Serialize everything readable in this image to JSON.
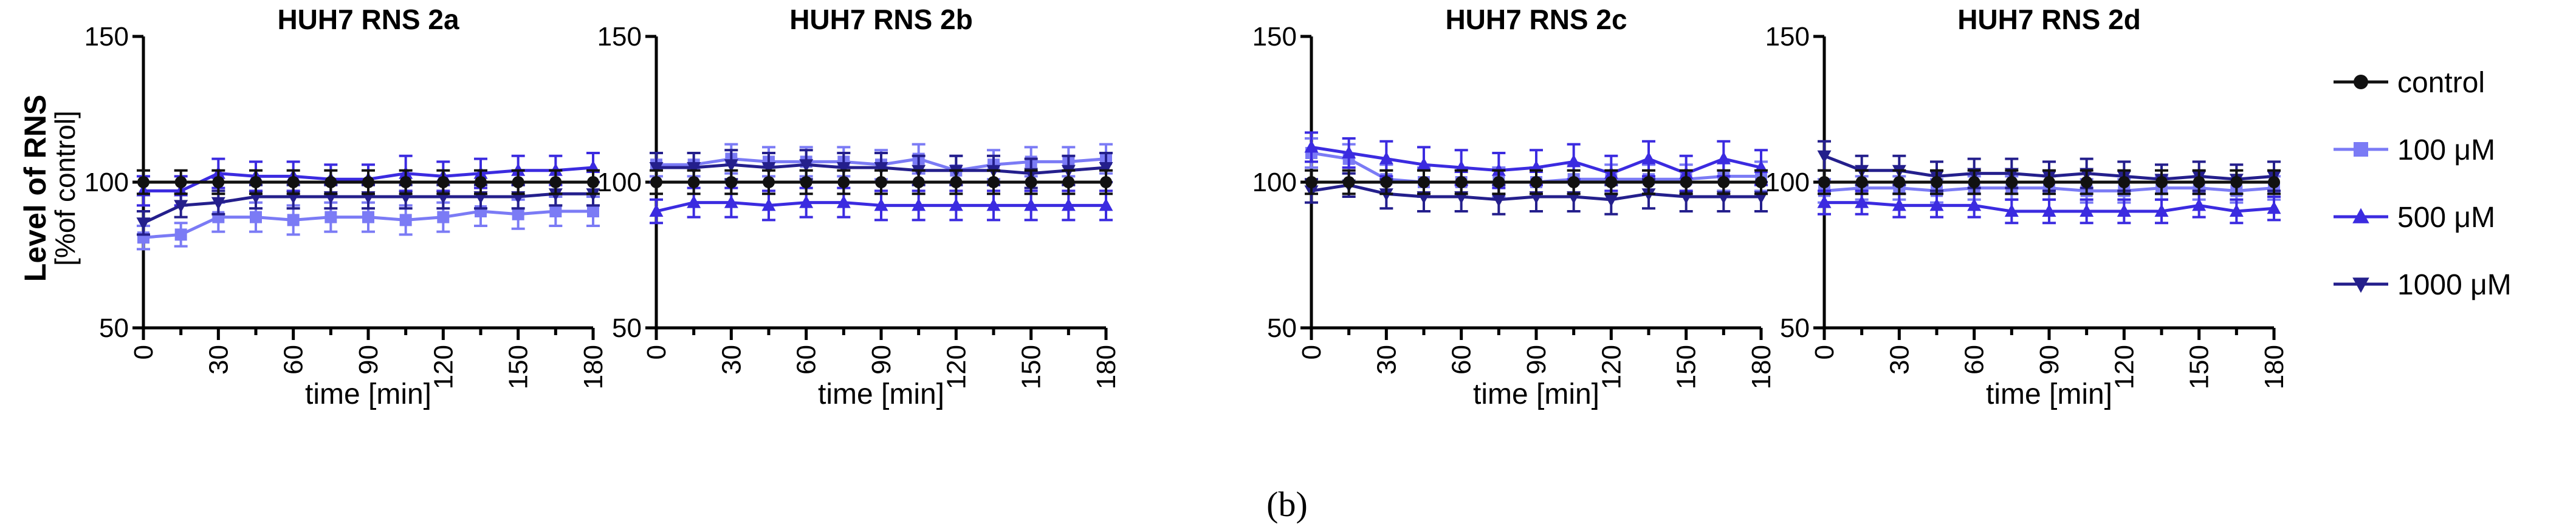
{
  "figure": {
    "ylabel_line1": "Level of RNS",
    "ylabel_line2": "[%of control]",
    "panel_label": "(b)"
  },
  "legend": [
    {
      "name": "control",
      "color": "#111111",
      "marker": "circle"
    },
    {
      "name": "100 μM",
      "color": "#7B7BF5",
      "marker": "square"
    },
    {
      "name": "500 μM",
      "color": "#3B2BE0",
      "marker": "triangle-up"
    },
    {
      "name": "1000 μM",
      "color": "#241F8C",
      "marker": "triangle-down"
    }
  ],
  "chart_data": [
    {
      "type": "line",
      "title": "HUH7 RNS 2a",
      "xlabel": "time [min]",
      "ylabel": "Level of RNS [%of control]",
      "x": [
        0,
        15,
        30,
        45,
        60,
        75,
        90,
        105,
        120,
        135,
        150,
        165,
        180
      ],
      "xticks": [
        0,
        30,
        60,
        90,
        120,
        150,
        180
      ],
      "yticks": [
        50,
        100,
        150
      ],
      "ylim": [
        50,
        150
      ],
      "xlim": [
        0,
        180
      ],
      "series": [
        {
          "name": "control",
          "values": [
            100,
            100,
            100,
            100,
            100,
            100,
            100,
            100,
            100,
            100,
            100,
            100,
            100
          ],
          "error": [
            4,
            4,
            4,
            4,
            4,
            4,
            4,
            4,
            4,
            4,
            4,
            4,
            4
          ]
        },
        {
          "name": "100 μM",
          "values": [
            81,
            82,
            88,
            88,
            87,
            88,
            88,
            87,
            88,
            90,
            89,
            90,
            90
          ],
          "error": [
            4,
            4,
            5,
            5,
            5,
            5,
            5,
            5,
            5,
            5,
            5,
            5,
            5
          ]
        },
        {
          "name": "500 μM",
          "values": [
            97,
            97,
            103,
            102,
            102,
            101,
            101,
            103,
            102,
            103,
            104,
            104,
            105
          ],
          "error": [
            5,
            5,
            5,
            5,
            5,
            5,
            5,
            6,
            5,
            5,
            5,
            5,
            5
          ]
        },
        {
          "name": "1000 μM",
          "values": [
            86,
            92,
            93,
            95,
            95,
            95,
            95,
            95,
            95,
            95,
            95,
            96,
            96
          ],
          "error": [
            4,
            4,
            4,
            4,
            4,
            4,
            4,
            4,
            4,
            4,
            4,
            4,
            4
          ]
        }
      ]
    },
    {
      "type": "line",
      "title": "HUH7 RNS 2b",
      "xlabel": "time [min]",
      "ylabel": "",
      "x": [
        0,
        15,
        30,
        45,
        60,
        75,
        90,
        105,
        120,
        135,
        150,
        165,
        180
      ],
      "xticks": [
        0,
        30,
        60,
        90,
        120,
        150,
        180
      ],
      "yticks": [
        50,
        100,
        150
      ],
      "ylim": [
        50,
        150
      ],
      "xlim": [
        0,
        180
      ],
      "series": [
        {
          "name": "control",
          "values": [
            100,
            100,
            100,
            100,
            100,
            100,
            100,
            100,
            100,
            100,
            100,
            100,
            100
          ],
          "error": [
            4,
            4,
            4,
            4,
            4,
            4,
            4,
            4,
            4,
            4,
            4,
            4,
            4
          ]
        },
        {
          "name": "100 μM",
          "values": [
            106,
            106,
            108,
            107,
            107,
            107,
            106,
            108,
            104,
            106,
            107,
            107,
            108
          ],
          "error": [
            4,
            4,
            5,
            5,
            5,
            5,
            5,
            5,
            5,
            5,
            5,
            5,
            5
          ]
        },
        {
          "name": "500 μM",
          "values": [
            90,
            93,
            93,
            92,
            93,
            93,
            92,
            92,
            92,
            92,
            92,
            92,
            92
          ],
          "error": [
            4,
            5,
            5,
            5,
            5,
            5,
            5,
            5,
            5,
            5,
            5,
            5,
            5
          ]
        },
        {
          "name": "1000 μM",
          "values": [
            105,
            105,
            106,
            105,
            106,
            105,
            105,
            104,
            104,
            104,
            103,
            104,
            105
          ],
          "error": [
            5,
            5,
            5,
            5,
            5,
            5,
            5,
            5,
            5,
            5,
            5,
            5,
            5
          ]
        }
      ]
    },
    {
      "type": "line",
      "title": "HUH7 RNS 2c",
      "xlabel": "time [min]",
      "ylabel": "",
      "x": [
        0,
        15,
        30,
        45,
        60,
        75,
        90,
        105,
        120,
        135,
        150,
        165,
        180
      ],
      "xticks": [
        0,
        30,
        60,
        90,
        120,
        150,
        180
      ],
      "yticks": [
        50,
        100,
        150
      ],
      "ylim": [
        50,
        150
      ],
      "xlim": [
        0,
        180
      ],
      "series": [
        {
          "name": "control",
          "values": [
            100,
            100,
            100,
            100,
            100,
            100,
            100,
            100,
            100,
            100,
            100,
            100,
            100
          ],
          "error": [
            4,
            4,
            4,
            4,
            4,
            4,
            4,
            4,
            4,
            4,
            4,
            4,
            4
          ]
        },
        {
          "name": "100 μM",
          "values": [
            110,
            108,
            101,
            100,
            100,
            100,
            100,
            101,
            101,
            101,
            101,
            102,
            102
          ],
          "error": [
            5,
            5,
            5,
            5,
            5,
            5,
            5,
            5,
            5,
            5,
            5,
            5,
            5
          ]
        },
        {
          "name": "500 μM",
          "values": [
            112,
            110,
            108,
            106,
            105,
            104,
            105,
            107,
            103,
            108,
            103,
            108,
            105
          ],
          "error": [
            5,
            5,
            6,
            6,
            6,
            6,
            6,
            6,
            6,
            6,
            6,
            6,
            6
          ]
        },
        {
          "name": "1000 μM",
          "values": [
            97,
            99,
            96,
            95,
            95,
            94,
            95,
            95,
            94,
            96,
            95,
            95,
            95
          ],
          "error": [
            4,
            4,
            5,
            5,
            5,
            5,
            5,
            5,
            5,
            5,
            5,
            5,
            5
          ]
        }
      ]
    },
    {
      "type": "line",
      "title": "HUH7 RNS 2d",
      "xlabel": "time [min]",
      "ylabel": "",
      "x": [
        0,
        15,
        30,
        45,
        60,
        75,
        90,
        105,
        120,
        135,
        150,
        165,
        180
      ],
      "xticks": [
        0,
        30,
        60,
        90,
        120,
        150,
        180
      ],
      "yticks": [
        50,
        100,
        150
      ],
      "ylim": [
        50,
        150
      ],
      "xlim": [
        0,
        180
      ],
      "series": [
        {
          "name": "control",
          "values": [
            100,
            100,
            100,
            100,
            100,
            100,
            100,
            100,
            100,
            100,
            100,
            100,
            100
          ],
          "error": [
            4,
            4,
            4,
            4,
            4,
            4,
            4,
            4,
            4,
            4,
            4,
            4,
            4
          ]
        },
        {
          "name": "100 μM",
          "values": [
            97,
            98,
            98,
            97,
            98,
            98,
            98,
            97,
            97,
            98,
            98,
            97,
            98
          ],
          "error": [
            4,
            4,
            4,
            4,
            4,
            4,
            4,
            4,
            4,
            4,
            4,
            4,
            4
          ]
        },
        {
          "name": "500 μM",
          "values": [
            93,
            93,
            92,
            92,
            92,
            90,
            90,
            90,
            90,
            90,
            92,
            90,
            91
          ],
          "error": [
            4,
            4,
            4,
            4,
            4,
            4,
            4,
            4,
            4,
            4,
            4,
            4,
            4
          ]
        },
        {
          "name": "1000 μM",
          "values": [
            109,
            104,
            104,
            102,
            103,
            103,
            102,
            103,
            102,
            101,
            102,
            101,
            102
          ],
          "error": [
            5,
            5,
            5,
            5,
            5,
            5,
            5,
            5,
            5,
            5,
            5,
            5,
            5
          ]
        }
      ]
    }
  ]
}
